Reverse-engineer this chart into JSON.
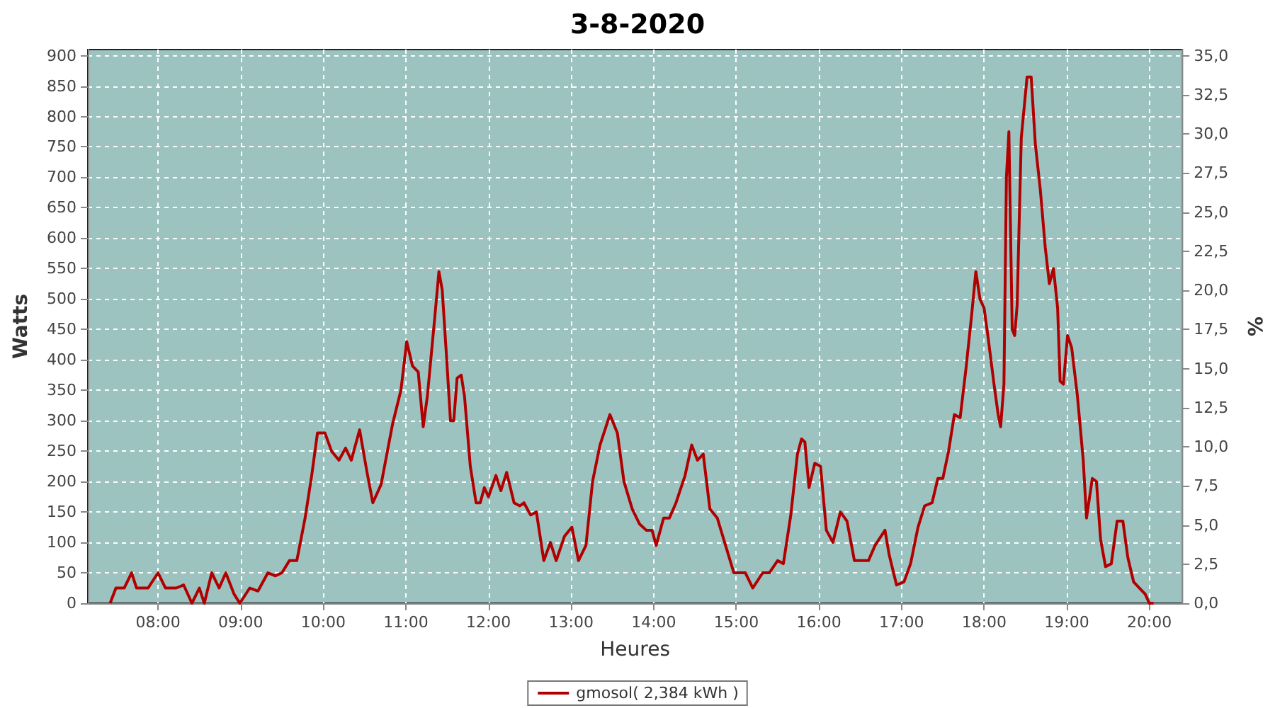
{
  "chart_data": {
    "type": "line",
    "title": "3-8-2020",
    "xlabel": "Heures",
    "ylabel": "Watts",
    "y2label": "%",
    "xlim": [
      7.15,
      20.4
    ],
    "ylim": [
      0,
      910
    ],
    "y2lim": [
      0,
      35.39
    ],
    "xticks": [
      {
        "value": 8,
        "label": "08:00"
      },
      {
        "value": 9,
        "label": "09:00"
      },
      {
        "value": 10,
        "label": "10:00"
      },
      {
        "value": 11,
        "label": "11:00"
      },
      {
        "value": 12,
        "label": "12:00"
      },
      {
        "value": 13,
        "label": "13:00"
      },
      {
        "value": 14,
        "label": "14:00"
      },
      {
        "value": 15,
        "label": "15:00"
      },
      {
        "value": 16,
        "label": "16:00"
      },
      {
        "value": 17,
        "label": "17:00"
      },
      {
        "value": 18,
        "label": "18:00"
      },
      {
        "value": 19,
        "label": "19:00"
      },
      {
        "value": 20,
        "label": "20:00"
      }
    ],
    "yticks": [
      0,
      50,
      100,
      150,
      200,
      250,
      300,
      350,
      400,
      450,
      500,
      550,
      600,
      650,
      700,
      750,
      800,
      850,
      900
    ],
    "y2ticks": [
      {
        "value": 0,
        "label": "0,0"
      },
      {
        "value": 2.5,
        "label": "2,5"
      },
      {
        "value": 5,
        "label": "5,0"
      },
      {
        "value": 7.5,
        "label": "7,5"
      },
      {
        "value": 10,
        "label": "10,0"
      },
      {
        "value": 12.5,
        "label": "12,5"
      },
      {
        "value": 15,
        "label": "15,0"
      },
      {
        "value": 17.5,
        "label": "17,5"
      },
      {
        "value": 20,
        "label": "20,0"
      },
      {
        "value": 22.5,
        "label": "22,5"
      },
      {
        "value": 25,
        "label": "25,0"
      },
      {
        "value": 27.5,
        "label": "27,5"
      },
      {
        "value": 30,
        "label": "30,0"
      },
      {
        "value": 32.5,
        "label": "32,5"
      },
      {
        "value": 35,
        "label": "35,0"
      }
    ],
    "grid": true,
    "legend": "bottom",
    "marker": "none",
    "line_style": "solid",
    "series": [
      {
        "name": "gmosol( 2,384 kWh )",
        "color": "#b00000",
        "x": [
          7.42,
          7.49,
          7.59,
          7.68,
          7.74,
          7.88,
          8.0,
          8.09,
          8.22,
          8.31,
          8.41,
          8.5,
          8.56,
          8.65,
          8.74,
          8.82,
          8.92,
          8.99,
          9.11,
          9.21,
          9.33,
          9.42,
          9.5,
          9.59,
          9.68,
          9.78,
          9.86,
          9.93,
          10.02,
          10.1,
          10.19,
          10.27,
          10.34,
          10.44,
          10.53,
          10.6,
          10.7,
          10.77,
          10.84,
          10.94,
          11.01,
          11.08,
          11.15,
          11.21,
          11.26,
          11.35,
          11.4,
          11.44,
          11.49,
          11.54,
          11.58,
          11.62,
          11.67,
          11.71,
          11.78,
          11.85,
          11.9,
          11.95,
          12.0,
          12.09,
          12.15,
          12.22,
          12.31,
          12.38,
          12.43,
          12.51,
          12.58,
          12.67,
          12.75,
          12.82,
          12.92,
          13.01,
          13.09,
          13.18,
          13.26,
          13.35,
          13.47,
          13.56,
          13.64,
          13.74,
          13.83,
          13.91,
          13.98,
          14.03,
          14.12,
          14.19,
          14.27,
          14.38,
          14.46,
          14.53,
          14.6,
          14.68,
          14.77,
          14.87,
          14.97,
          15.11,
          15.2,
          15.32,
          15.4,
          15.5,
          15.57,
          15.66,
          15.74,
          15.79,
          15.83,
          15.88,
          15.95,
          16.02,
          16.09,
          16.17,
          16.26,
          16.34,
          16.43,
          16.51,
          16.6,
          16.68,
          16.8,
          16.85,
          16.94,
          17.03,
          17.11,
          17.2,
          17.28,
          17.37,
          17.44,
          17.5,
          17.57,
          17.64,
          17.71,
          17.78,
          17.85,
          17.9,
          17.95,
          18.0,
          18.05,
          18.12,
          18.17,
          18.2,
          18.24,
          18.27,
          18.3,
          18.34,
          18.37,
          18.4,
          18.45,
          18.52,
          18.57,
          18.62,
          18.68,
          18.74,
          18.79,
          18.84,
          18.89,
          18.92,
          18.96,
          19.01,
          19.06,
          19.13,
          19.2,
          19.24,
          19.31,
          19.36,
          19.41,
          19.47,
          19.54,
          19.61,
          19.68,
          19.74,
          19.81,
          19.88,
          19.95,
          20.0,
          20.05
        ],
        "values": [
          0,
          25,
          25,
          50,
          25,
          25,
          50,
          25,
          25,
          30,
          0,
          25,
          0,
          50,
          25,
          50,
          15,
          0,
          25,
          20,
          50,
          45,
          50,
          70,
          70,
          140,
          210,
          280,
          280,
          250,
          235,
          255,
          235,
          285,
          215,
          165,
          195,
          245,
          295,
          350,
          430,
          390,
          380,
          290,
          340,
          470,
          545,
          515,
          410,
          300,
          300,
          370,
          375,
          340,
          225,
          165,
          165,
          190,
          175,
          210,
          185,
          215,
          165,
          160,
          165,
          145,
          150,
          70,
          100,
          70,
          110,
          125,
          70,
          95,
          200,
          260,
          310,
          280,
          200,
          155,
          130,
          120,
          120,
          95,
          140,
          140,
          165,
          210,
          260,
          235,
          245,
          155,
          140,
          95,
          50,
          50,
          25,
          50,
          50,
          70,
          65,
          145,
          245,
          270,
          265,
          190,
          230,
          225,
          120,
          100,
          150,
          135,
          70,
          70,
          70,
          95,
          120,
          80,
          30,
          35,
          65,
          125,
          160,
          165,
          205,
          205,
          250,
          310,
          305,
          385,
          475,
          545,
          500,
          485,
          435,
          360,
          310,
          290,
          360,
          700,
          775,
          450,
          440,
          490,
          765,
          865,
          865,
          755,
          680,
          585,
          525,
          550,
          485,
          365,
          360,
          440,
          420,
          340,
          235,
          140,
          205,
          200,
          105,
          60,
          65,
          135,
          135,
          75,
          35,
          25,
          15,
          0,
          0
        ]
      }
    ]
  }
}
